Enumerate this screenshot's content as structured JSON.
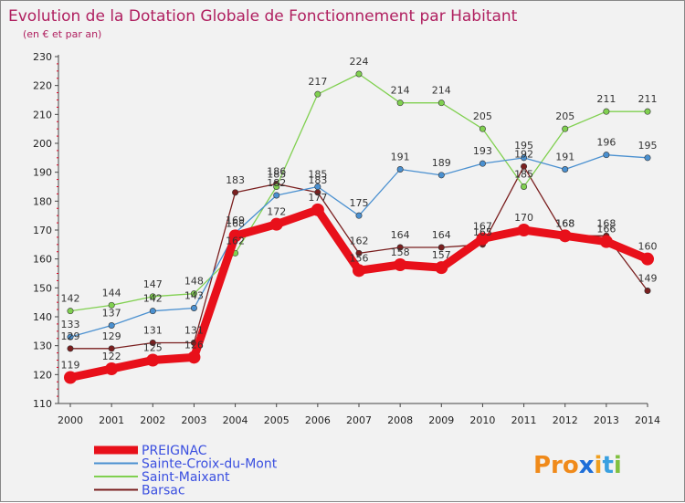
{
  "chart_data": {
    "type": "line",
    "title": "Evolution de la Dotation Globale de Fonctionnement par Habitant",
    "subtitle": "(en € et par an)",
    "categories": [
      "2000",
      "2001",
      "2002",
      "2003",
      "2004",
      "2005",
      "2006",
      "2007",
      "2008",
      "2009",
      "2010",
      "2011",
      "2012",
      "2013",
      "2014"
    ],
    "ylim": [
      110,
      230
    ],
    "yticks": [
      110,
      120,
      130,
      140,
      150,
      160,
      170,
      180,
      190,
      200,
      210,
      220,
      230
    ],
    "grid": false,
    "legend_position": "bottom-left",
    "series": [
      {
        "name": "PREIGNAC",
        "color": "#e8101a",
        "values": [
          119,
          122,
          125,
          126,
          168,
          172,
          177,
          156,
          158,
          157,
          167,
          170,
          168,
          166,
          160
        ]
      },
      {
        "name": "Sainte-Croix-du-Mont",
        "color": "#4a90d0",
        "values": [
          133,
          137,
          142,
          143,
          169,
          182,
          185,
          175,
          191,
          189,
          193,
          195,
          191,
          196,
          195
        ]
      },
      {
        "name": "Saint-Maixant",
        "color": "#80d050",
        "values": [
          142,
          144,
          147,
          148,
          162,
          185,
          217,
          224,
          214,
          214,
          205,
          185,
          205,
          211,
          211
        ]
      },
      {
        "name": "Barsac",
        "color": "#7a1f1f",
        "values": [
          129,
          129,
          131,
          131,
          183,
          186,
          183,
          162,
          164,
          164,
          165,
          192,
          168,
          168,
          149
        ]
      }
    ]
  },
  "brand": {
    "logo_text": "Proxiti"
  }
}
